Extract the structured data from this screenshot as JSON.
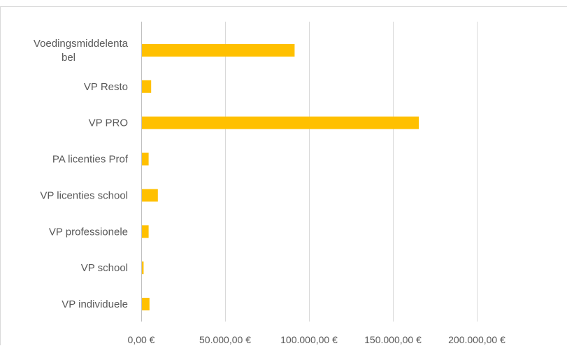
{
  "chart_data": {
    "type": "bar",
    "orientation": "horizontal",
    "title": "",
    "xlabel": "",
    "ylabel": "",
    "categories": [
      "Voedingsmiddelentabel",
      "VP Resto",
      "VP PRO",
      "PA licenties Prof",
      "VP licenties school",
      "VP professionele",
      "VP school",
      "VP individuele"
    ],
    "category_label_lines": [
      [
        "Voedingsmiddelenta",
        "bel"
      ],
      [
        "VP Resto"
      ],
      [
        "VP PRO"
      ],
      [
        "PA licenties Prof"
      ],
      [
        "VP licenties school"
      ],
      [
        "VP professionele"
      ],
      [
        "VP school"
      ],
      [
        "VP individuele"
      ]
    ],
    "series": [
      {
        "values": [
          91000,
          5500,
          165000,
          4000,
          9500,
          4000,
          1000,
          4500
        ]
      }
    ],
    "xlim": [
      0,
      220000
    ],
    "x_ticks": [
      0,
      50000,
      100000,
      150000,
      200000
    ],
    "x_tick_labels": [
      "0,00 €",
      "50.000,00 €",
      "100.000,00 €",
      "150.000,00 €",
      "200.000,00 €"
    ],
    "grid": "vertical major gridlines",
    "legend": "none",
    "bar_color": "#ffc000"
  }
}
